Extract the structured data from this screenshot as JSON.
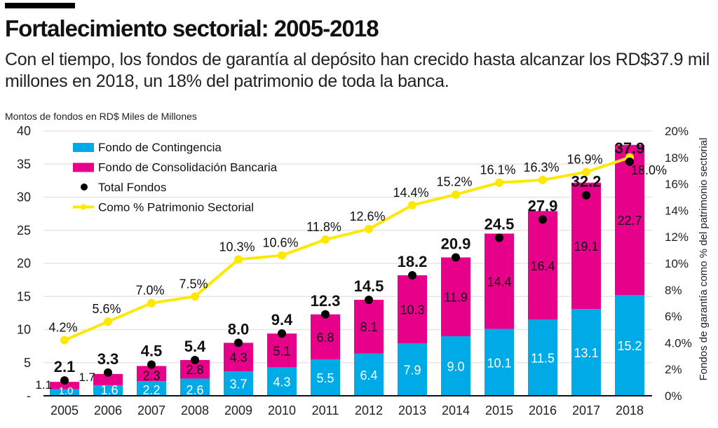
{
  "title": "Fortalecimiento sectorial: 2005-2018",
  "subtitle": "Con el tiempo, los fondos de garantía al depósito han crecido hasta alcanzar los RD$37.9 mil millones en 2018, un 18% del patrimonio de toda la banca.",
  "colors": {
    "contingencia": "#00aae7",
    "consolidacion": "#e6008a",
    "total": "#000000",
    "pct": "#ffe800"
  },
  "chart_data": {
    "type": "bar",
    "stacked": true,
    "ylabel": "Montos de fondos en RD$ Miles de Millones",
    "y2label": "Fondos de garantía como % del patrimonio sectorial",
    "ylim": [
      0,
      40
    ],
    "y2lim": [
      0,
      20
    ],
    "yticks": [
      "-",
      "5",
      "10",
      "15",
      "20",
      "25",
      "30",
      "35",
      "40"
    ],
    "y2ticks": [
      "0%",
      "2%",
      "4.0%",
      "6%",
      "8%",
      "10%",
      "12%",
      "14%",
      "16%",
      "18%",
      "20%"
    ],
    "grid": true,
    "legend_position": "top-left",
    "categories": [
      "2005",
      "2006",
      "2007",
      "2008",
      "2009",
      "2010",
      "2011",
      "2012",
      "2013",
      "2014",
      "2015",
      "2016",
      "2017",
      "2018"
    ],
    "series": [
      {
        "name": "Fondo de Contingencia",
        "type": "bar",
        "values": [
          1.0,
          1.6,
          2.2,
          2.6,
          3.7,
          4.3,
          5.5,
          6.4,
          7.9,
          9.0,
          10.1,
          11.5,
          13.1,
          15.2
        ]
      },
      {
        "name": "Fondo de Consolidación Bancaria",
        "type": "bar",
        "values": [
          1.1,
          1.7,
          2.3,
          2.8,
          4.3,
          5.1,
          6.8,
          8.1,
          10.3,
          11.9,
          14.4,
          16.4,
          19.1,
          22.7
        ]
      },
      {
        "name": "Total Fondos",
        "type": "scatter",
        "values": [
          2.1,
          3.3,
          4.5,
          5.4,
          8.0,
          9.4,
          12.3,
          14.5,
          18.2,
          20.9,
          24.5,
          27.9,
          32.2,
          37.9
        ]
      },
      {
        "name": "Como % Patrimonio Sectorial",
        "type": "line",
        "axis": "right",
        "values": [
          4.2,
          5.6,
          7.0,
          7.5,
          10.3,
          10.6,
          11.8,
          12.6,
          14.4,
          15.2,
          16.1,
          16.3,
          16.9,
          18.0
        ],
        "labels": [
          "4.2%",
          "5.6%",
          "7.0%",
          "7.5%",
          "10.3%",
          "10.6%",
          "11.8%",
          "12.6%",
          "14.4%",
          "15.2%",
          "16.1%",
          "16.3%",
          "16.9%",
          "18.0%"
        ]
      }
    ]
  }
}
